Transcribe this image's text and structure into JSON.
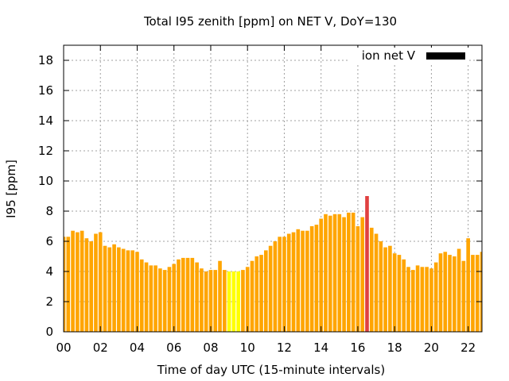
{
  "chart_data": {
    "type": "bar",
    "title": "Total I95 zenith [ppm] on NET V, DoY=130",
    "xlabel": "Time of day UTC (15-minute intervals)",
    "ylabel": "I95 [ppm]",
    "ylim": [
      0,
      19
    ],
    "xlim": [
      0,
      22.75
    ],
    "yticks": [
      0,
      2,
      4,
      6,
      8,
      10,
      12,
      14,
      16,
      18
    ],
    "xticks": [
      "00",
      "02",
      "04",
      "06",
      "08",
      "10",
      "12",
      "14",
      "16",
      "18",
      "20",
      "22"
    ],
    "grid": true,
    "legend": {
      "label": "ion net V",
      "position": "top-right",
      "color": "#000000"
    },
    "colors": {
      "normal": "#ffa500",
      "low": "#ffff00",
      "high": "#e04040"
    },
    "bar_interval_hours": 0.25,
    "values": [
      6.3,
      6.3,
      6.7,
      6.6,
      6.7,
      6.2,
      6.0,
      6.5,
      6.6,
      5.7,
      5.6,
      5.8,
      5.6,
      5.5,
      5.4,
      5.4,
      5.3,
      4.8,
      4.6,
      4.4,
      4.4,
      4.2,
      4.1,
      4.3,
      4.5,
      4.8,
      4.9,
      4.9,
      4.9,
      4.6,
      4.2,
      4.0,
      4.1,
      4.1,
      4.7,
      4.1,
      4.0,
      4.0,
      4.0,
      4.1,
      4.3,
      4.7,
      5.0,
      5.1,
      5.4,
      5.7,
      6.0,
      6.3,
      6.3,
      6.5,
      6.6,
      6.8,
      6.7,
      6.7,
      7.0,
      7.1,
      7.5,
      7.8,
      7.7,
      7.8,
      7.8,
      7.6,
      7.9,
      7.9,
      7.0,
      7.6,
      9.0,
      6.9,
      6.5,
      6.0,
      5.6,
      5.7,
      5.2,
      5.1,
      4.8,
      4.3,
      4.1,
      4.4,
      4.3,
      4.3,
      4.2,
      4.6,
      5.2,
      5.3,
      5.1,
      5.0,
      5.5,
      4.7,
      6.2,
      5.1,
      5.1,
      5.3
    ],
    "bar_categories": [
      "normal",
      "normal",
      "normal",
      "normal",
      "normal",
      "normal",
      "normal",
      "normal",
      "normal",
      "normal",
      "normal",
      "normal",
      "normal",
      "normal",
      "normal",
      "normal",
      "normal",
      "normal",
      "normal",
      "normal",
      "normal",
      "normal",
      "normal",
      "normal",
      "normal",
      "normal",
      "normal",
      "normal",
      "normal",
      "normal",
      "normal",
      "normal",
      "normal",
      "normal",
      "normal",
      "normal",
      "low",
      "low",
      "low",
      "normal",
      "normal",
      "normal",
      "normal",
      "normal",
      "normal",
      "normal",
      "normal",
      "normal",
      "normal",
      "normal",
      "normal",
      "normal",
      "normal",
      "normal",
      "normal",
      "normal",
      "normal",
      "normal",
      "normal",
      "normal",
      "normal",
      "normal",
      "normal",
      "normal",
      "normal",
      "normal",
      "high",
      "normal",
      "normal",
      "normal",
      "normal",
      "normal",
      "normal",
      "normal",
      "normal",
      "normal",
      "normal",
      "normal",
      "normal",
      "normal",
      "normal",
      "normal",
      "normal",
      "normal",
      "normal",
      "normal",
      "normal",
      "normal",
      "normal",
      "normal",
      "normal",
      "normal"
    ]
  }
}
